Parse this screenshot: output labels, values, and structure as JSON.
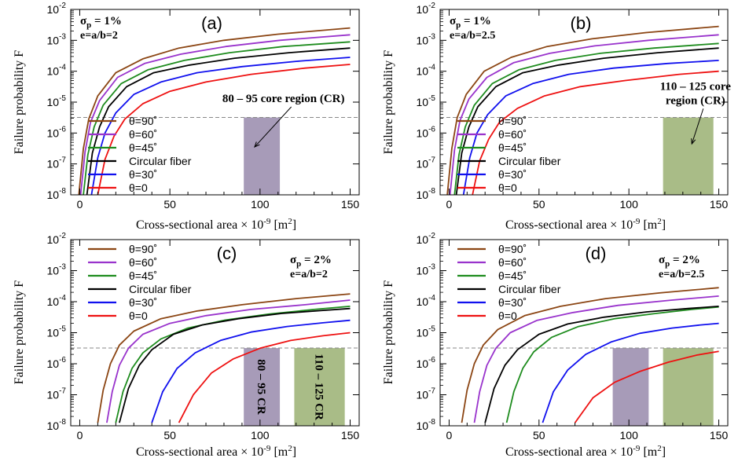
{
  "figure": {
    "ylabel": "Failure probability F",
    "xlabel_parts": [
      "Cross-sectional area",
      "×",
      " 10",
      "-9",
      " [m",
      "2",
      "]"
    ]
  },
  "colors": {
    "theta90": "#8B4513",
    "theta60": "#9933CC",
    "theta45": "#1E8C1E",
    "circular": "#000000",
    "theta30": "#1010EE",
    "theta0": "#EE1111",
    "cr_80_95": "#A79BB8",
    "cr_110_125": "#A9BC87",
    "threshold": "#888888"
  },
  "chart_data": [
    {
      "id": "a",
      "type": "line",
      "panel_label": "(a)",
      "sigma_label": "σ",
      "sigma_sub": "p",
      "sigma_value": " = 1%",
      "e_label": "e=a/b=2",
      "xlim": [
        -5,
        155
      ],
      "ylim_log10": [
        -8,
        -2
      ],
      "xticks": [
        0,
        50,
        100,
        150
      ],
      "ytick_base": "10",
      "ytick_exponents": [
        "-8",
        "-7",
        "-6",
        "-5",
        "-4",
        "-3",
        "-2"
      ],
      "threshold_y": 3.2e-06,
      "legend": [
        "θ=90˚",
        "θ=60˚",
        "θ=45˚",
        "Circular fiber",
        "θ=30˚",
        "θ=0"
      ],
      "series": [
        {
          "name": "θ=90˚",
          "color_key": "theta90",
          "x": [
            -0.5,
            2,
            5,
            10,
            20,
            35,
            55,
            80,
            110,
            150
          ],
          "log10F": [
            -8,
            -6.5,
            -5.55,
            -4.8,
            -4.05,
            -3.6,
            -3.25,
            -3.0,
            -2.8,
            -2.6
          ]
        },
        {
          "name": "θ=60˚",
          "color_key": "theta60",
          "x": [
            0.5,
            3,
            6,
            11,
            21,
            36,
            56,
            81,
            111,
            150
          ],
          "log10F": [
            -8,
            -6.6,
            -5.65,
            -4.95,
            -4.2,
            -3.75,
            -3.45,
            -3.2,
            -3.0,
            -2.82
          ]
        },
        {
          "name": "θ=45˚",
          "color_key": "theta45",
          "x": [
            2,
            4.5,
            8,
            13,
            23,
            38,
            58,
            83,
            113,
            150
          ],
          "log10F": [
            -8,
            -6.7,
            -5.8,
            -5.1,
            -4.4,
            -3.95,
            -3.65,
            -3.4,
            -3.2,
            -3.05
          ]
        },
        {
          "name": "Circular fiber",
          "color_key": "circular",
          "x": [
            4,
            7,
            11,
            16,
            26,
            41,
            61,
            86,
            116,
            150
          ],
          "log10F": [
            -8,
            -6.65,
            -5.8,
            -5.15,
            -4.5,
            -4.05,
            -3.8,
            -3.58,
            -3.4,
            -3.25
          ]
        },
        {
          "name": "θ=30˚",
          "color_key": "theta30",
          "x": [
            6.5,
            10,
            14,
            20,
            30,
            45,
            65,
            90,
            120,
            150
          ],
          "log10F": [
            -8,
            -6.8,
            -6.0,
            -5.35,
            -4.75,
            -4.35,
            -4.05,
            -3.85,
            -3.68,
            -3.55
          ]
        },
        {
          "name": "θ=0",
          "color_key": "theta0",
          "x": [
            10,
            14,
            19,
            25,
            35,
            50,
            70,
            95,
            125,
            150
          ],
          "log10F": [
            -8,
            -6.85,
            -6.1,
            -5.55,
            -5.05,
            -4.65,
            -4.35,
            -4.1,
            -3.9,
            -3.78
          ]
        }
      ],
      "regions": [
        {
          "x0": 91,
          "x1": 111,
          "color_key": "cr_80_95"
        }
      ],
      "annotations": [
        {
          "text": "80 – 95 core region (CR)",
          "anchor_x": 113,
          "anchor_log10": -5.0,
          "arrow_to_x": 97,
          "arrow_to_log10": -6.45
        }
      ],
      "legend_position": "lower-left",
      "stats_position": "top-left"
    },
    {
      "id": "b",
      "type": "line",
      "panel_label": "(b)",
      "sigma_label": "σ",
      "sigma_sub": "p",
      "sigma_value": " = 1%",
      "e_label": "e=a/b=2.5",
      "xlim": [
        -5,
        155
      ],
      "ylim_log10": [
        -8,
        -2
      ],
      "xticks": [
        0,
        50,
        100,
        150
      ],
      "ytick_base": "10",
      "ytick_exponents": [
        "-8",
        "-7",
        "-6",
        "-5",
        "-4",
        "-3",
        "-2"
      ],
      "threshold_y": 3.2e-06,
      "legend": [
        "θ=90˚",
        "θ=60˚",
        "θ=45˚",
        "Circular fiber",
        "θ=30˚",
        "θ=0"
      ],
      "series": [
        {
          "name": "θ=90˚",
          "color_key": "theta90",
          "x": [
            -1,
            1.5,
            4.5,
            9.5,
            19.5,
            34.5,
            54.5,
            79.5,
            109.5,
            150
          ],
          "log10F": [
            -8,
            -6.5,
            -5.5,
            -4.75,
            -4.0,
            -3.55,
            -3.2,
            -2.95,
            -2.75,
            -2.55
          ]
        },
        {
          "name": "θ=60˚",
          "color_key": "theta60",
          "x": [
            0.5,
            3,
            6,
            11,
            21,
            36,
            56,
            81,
            111,
            150
          ],
          "log10F": [
            -8,
            -6.55,
            -5.6,
            -4.9,
            -4.2,
            -3.72,
            -3.42,
            -3.18,
            -3.0,
            -2.82
          ]
        },
        {
          "name": "θ=45˚",
          "color_key": "theta45",
          "x": [
            3,
            5.5,
            9,
            14,
            24,
            39,
            59,
            84,
            114,
            150
          ],
          "log10F": [
            -8,
            -6.7,
            -5.8,
            -5.1,
            -4.4,
            -3.95,
            -3.65,
            -3.42,
            -3.25,
            -3.1
          ]
        },
        {
          "name": "Circular fiber",
          "color_key": "circular",
          "x": [
            4,
            7,
            11,
            16,
            26,
            41,
            61,
            86,
            116,
            150
          ],
          "log10F": [
            -8,
            -6.65,
            -5.8,
            -5.15,
            -4.5,
            -4.05,
            -3.8,
            -3.58,
            -3.4,
            -3.25
          ]
        },
        {
          "name": "θ=30˚",
          "color_key": "theta30",
          "x": [
            8,
            11.5,
            15.5,
            21.5,
            31.5,
            46.5,
            66.5,
            91.5,
            121.5,
            150
          ],
          "log10F": [
            -8,
            -6.8,
            -6.0,
            -5.4,
            -4.8,
            -4.4,
            -4.1,
            -3.9,
            -3.75,
            -3.65
          ]
        },
        {
          "name": "θ=0",
          "color_key": "theta0",
          "x": [
            13,
            17,
            22,
            28,
            38,
            53,
            73,
            98,
            128,
            150
          ],
          "log10F": [
            -8,
            -6.9,
            -6.2,
            -5.65,
            -5.2,
            -4.8,
            -4.5,
            -4.3,
            -4.1,
            -4.0
          ]
        }
      ],
      "regions": [
        {
          "x0": 119,
          "x1": 147,
          "color_key": "cr_110_125"
        }
      ],
      "annotations": [
        {
          "text": "110 – 125 core",
          "text2": "region (CR)",
          "anchor_x": 137,
          "anchor_log10": -4.6,
          "arrow_to_x": 135,
          "arrow_to_log10": -6.35
        }
      ],
      "legend_position": "lower-left",
      "stats_position": "top-left"
    },
    {
      "id": "c",
      "type": "line",
      "panel_label": "(c)",
      "sigma_label": "σ",
      "sigma_sub": "p",
      "sigma_value": " = 2%",
      "e_label": "e=a/b=2",
      "xlim": [
        -5,
        155
      ],
      "ylim_log10": [
        -8,
        -2
      ],
      "xticks": [
        0,
        50,
        100,
        150
      ],
      "ytick_base": "10",
      "ytick_exponents": [
        "-8",
        "-7",
        "-6",
        "-5",
        "-4",
        "-3",
        "-2"
      ],
      "threshold_y": 3.2e-06,
      "legend": [
        "θ=90˚",
        "θ=60˚",
        "θ=45˚",
        "Circular fiber",
        "θ=30˚",
        "θ=0"
      ],
      "series": [
        {
          "name": "θ=90˚",
          "color_key": "theta90",
          "x": [
            10,
            13,
            17,
            22,
            30,
            45,
            65,
            90,
            120,
            150
          ],
          "log10F": [
            -7.9,
            -6.85,
            -6.0,
            -5.4,
            -4.95,
            -4.55,
            -4.3,
            -4.1,
            -3.9,
            -3.75
          ]
        },
        {
          "name": "θ=60˚",
          "color_key": "theta60",
          "x": [
            15,
            18,
            22,
            27,
            35,
            50,
            70,
            95,
            125,
            150
          ],
          "log10F": [
            -7.9,
            -6.9,
            -6.05,
            -5.5,
            -5.05,
            -4.7,
            -4.45,
            -4.25,
            -4.1,
            -3.95
          ]
        },
        {
          "name": "θ=45˚",
          "color_key": "theta45",
          "x": [
            20,
            24,
            29,
            35,
            45,
            60,
            80,
            105,
            130,
            150
          ],
          "log10F": [
            -7.9,
            -6.9,
            -6.15,
            -5.65,
            -5.2,
            -4.85,
            -4.6,
            -4.4,
            -4.25,
            -4.15
          ]
        },
        {
          "name": "Circular fiber",
          "color_key": "circular",
          "x": [
            22,
            27,
            33,
            40,
            52,
            68,
            88,
            112,
            135,
            150
          ],
          "log10F": [
            -7.9,
            -6.8,
            -6.05,
            -5.55,
            -5.05,
            -4.75,
            -4.55,
            -4.38,
            -4.28,
            -4.22
          ]
        },
        {
          "name": "θ=30˚",
          "color_key": "theta30",
          "x": [
            40,
            46,
            54,
            64,
            78,
            95,
            115,
            135,
            150
          ],
          "log10F": [
            -7.9,
            -6.9,
            -6.15,
            -5.65,
            -5.25,
            -4.98,
            -4.8,
            -4.68,
            -4.6
          ]
        },
        {
          "name": "θ=0",
          "color_key": "theta0",
          "x": [
            55,
            63,
            73,
            85,
            100,
            117,
            135,
            150
          ],
          "log10F": [
            -7.9,
            -7.0,
            -6.3,
            -5.85,
            -5.5,
            -5.25,
            -5.1,
            -5.0
          ]
        }
      ],
      "regions": [
        {
          "x0": 91,
          "x1": 111,
          "color_key": "cr_80_95",
          "text": "80 – 95 CR"
        },
        {
          "x0": 119,
          "x1": 147,
          "color_key": "cr_110_125",
          "text": "110 – 125 CR"
        }
      ],
      "annotations": [],
      "legend_position": "top-left",
      "stats_position": "top-right"
    },
    {
      "id": "d",
      "type": "line",
      "panel_label": "(d)",
      "sigma_label": "σ",
      "sigma_sub": "p",
      "sigma_value": " = 2%",
      "e_label": "e=a/b=2.5",
      "xlim": [
        -5,
        155
      ],
      "ylim_log10": [
        -8,
        -2
      ],
      "xticks": [
        0,
        50,
        100,
        150
      ],
      "ytick_base": "10",
      "ytick_exponents": [
        "-8",
        "-7",
        "-6",
        "-5",
        "-4",
        "-3",
        "-2"
      ],
      "threshold_y": 3.2e-06,
      "legend": [
        "θ=90˚",
        "θ=60˚",
        "θ=45˚",
        "Circular fiber",
        "θ=30˚",
        "θ=0"
      ],
      "series": [
        {
          "name": "θ=90˚",
          "color_key": "theta90",
          "x": [
            7,
            10,
            14,
            19,
            27,
            42,
            62,
            87,
            117,
            150
          ],
          "log10F": [
            -7.9,
            -6.85,
            -6.0,
            -5.4,
            -4.9,
            -4.45,
            -4.15,
            -3.9,
            -3.72,
            -3.55
          ]
        },
        {
          "name": "θ=60˚",
          "color_key": "theta60",
          "x": [
            14,
            17,
            21,
            26,
            34,
            49,
            69,
            94,
            124,
            150
          ],
          "log10F": [
            -7.9,
            -6.9,
            -6.05,
            -5.5,
            -5.0,
            -4.6,
            -4.35,
            -4.12,
            -3.95,
            -3.82
          ]
        },
        {
          "name": "θ=45˚",
          "color_key": "theta45",
          "x": [
            32,
            36,
            41,
            47,
            57,
            72,
            92,
            115,
            135,
            150
          ],
          "log10F": [
            -7.9,
            -6.9,
            -6.15,
            -5.62,
            -5.15,
            -4.8,
            -4.55,
            -4.38,
            -4.25,
            -4.17
          ]
        },
        {
          "name": "Circular fiber",
          "color_key": "circular",
          "x": [
            20,
            25,
            31,
            38,
            50,
            66,
            86,
            110,
            133,
            150
          ],
          "log10F": [
            -7.9,
            -6.8,
            -6.05,
            -5.55,
            -5.05,
            -4.72,
            -4.5,
            -4.33,
            -4.22,
            -4.15
          ]
        },
        {
          "name": "θ=30˚",
          "color_key": "theta30",
          "x": [
            52,
            58,
            66,
            76,
            90,
            106,
            124,
            140,
            150
          ],
          "log10F": [
            -7.9,
            -6.9,
            -6.2,
            -5.7,
            -5.3,
            -5.02,
            -4.85,
            -4.75,
            -4.7
          ]
        },
        {
          "name": "θ=0",
          "color_key": "theta0",
          "x": [
            70,
            80,
            92,
            106,
            122,
            138,
            150
          ],
          "log10F": [
            -7.9,
            -7.1,
            -6.6,
            -6.25,
            -5.95,
            -5.72,
            -5.6
          ]
        }
      ],
      "regions": [
        {
          "x0": 91,
          "x1": 111,
          "color_key": "cr_80_95"
        },
        {
          "x0": 119,
          "x1": 147,
          "color_key": "cr_110_125"
        }
      ],
      "annotations": [],
      "legend_position": "top-left",
      "stats_position": "top-right"
    }
  ]
}
